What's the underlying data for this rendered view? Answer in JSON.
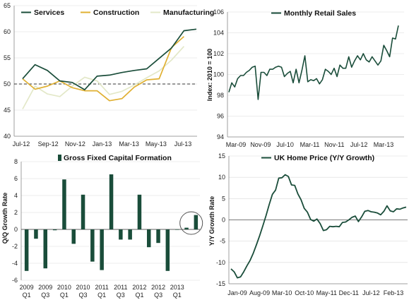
{
  "colors": {
    "dark_green": "#1a4d3a",
    "gold": "#e0b032",
    "pale_green": "#e3e8c8",
    "grid": "#d9d9d9",
    "axis": "#888888"
  },
  "chart_data": [
    {
      "id": "pmi",
      "type": "line",
      "title": "",
      "xlabel": "",
      "ylabel": "",
      "ylim": [
        40,
        65
      ],
      "yticks": [
        40,
        45,
        50,
        55,
        60,
        65
      ],
      "xtick_labels": [
        "Jul-12",
        "Sep-12",
        "Nov-12",
        "Jan-13",
        "Mar-13",
        "May-13",
        "Jul-13"
      ],
      "reference_line": 50,
      "legend_position": "top",
      "grid": "horizontal",
      "series": [
        {
          "name": "Services",
          "color": "#1a4d3a",
          "values": [
            51.0,
            53.7,
            52.6,
            50.6,
            50.3,
            48.9,
            51.5,
            51.7,
            52.2,
            52.6,
            52.9,
            54.9,
            56.9,
            60.2,
            60.5
          ]
        },
        {
          "name": "Construction",
          "color": "#e0b032",
          "values": [
            51.0,
            49.0,
            49.6,
            50.6,
            49.3,
            48.7,
            48.7,
            46.8,
            47.2,
            49.4,
            50.8,
            51.0,
            57.0,
            59.1,
            null
          ]
        },
        {
          "name": "Manufacturing",
          "color": "#e3e8c8",
          "values": [
            45.2,
            49.6,
            48.1,
            47.6,
            49.6,
            51.3,
            50.6,
            48.0,
            48.6,
            49.8,
            51.2,
            52.5,
            54.6,
            57.2,
            null
          ]
        }
      ]
    },
    {
      "id": "retail",
      "type": "line",
      "title": "Monthly Retail Sales",
      "xlabel": "",
      "ylabel": "Index: 2010 = 100",
      "ylim": [
        94,
        106
      ],
      "yticks": [
        94,
        96,
        98,
        100,
        102,
        104,
        106
      ],
      "xtick_labels": [
        "Mar-09",
        "Nov-09",
        "Jul-10",
        "Mar-11",
        "Nov-11",
        "Jul-12",
        "Mar-13"
      ],
      "legend_position": "top",
      "grid": "horizontal",
      "series": [
        {
          "name": "Monthly Retail Sales",
          "color": "#1a4d3a",
          "values": [
            98.3,
            99.2,
            98.8,
            99.6,
            99.9,
            99.9,
            100.2,
            100.4,
            100.7,
            100.8,
            97.6,
            100.2,
            100.2,
            99.9,
            100.5,
            100.5,
            100.7,
            100.8,
            100.7,
            99.8,
            100.1,
            100.3,
            99.2,
            100.5,
            99.2,
            100.4,
            101.8,
            99.3,
            99.5,
            99.4,
            99.6,
            99.1,
            99.5,
            100.5,
            100.3,
            100.0,
            100.6,
            99.8,
            100.9,
            100.6,
            100.6,
            101.7,
            100.7,
            101.3,
            101.8,
            101.4,
            102.0,
            101.4,
            101.2,
            101.7,
            101.3,
            100.9,
            101.3,
            102.8,
            102.3,
            101.7,
            103.5,
            103.4,
            104.7
          ]
        }
      ]
    },
    {
      "id": "gfcf",
      "type": "bar",
      "title": "Gross Fixed Capital Formation",
      "xlabel": "",
      "ylabel": "Q/Q Growth Rate",
      "ylim": [
        -6,
        8
      ],
      "yticks": [
        -6,
        -4,
        -2,
        0,
        2,
        4,
        6,
        8
      ],
      "categories": [
        "2009 Q1",
        "2009 Q2",
        "2009 Q3",
        "2009 Q4",
        "2010 Q1",
        "2010 Q2",
        "2010 Q3",
        "2010 Q4",
        "2011 Q1",
        "2011 Q2",
        "2011 Q3",
        "2011 Q4",
        "2012 Q1",
        "2012 Q2",
        "2012 Q3",
        "2012 Q4",
        "2013 Q1",
        "2013 Q2",
        "2013 Q3"
      ],
      "values": [
        -4.9,
        -1.1,
        -4.6,
        -0.1,
        5.9,
        -1.7,
        4.1,
        -3.8,
        -4.8,
        6.5,
        -1.2,
        -1.2,
        4.1,
        -2.1,
        -1.6,
        -4.9,
        0.0,
        0.2,
        1.7
      ],
      "tick_labels": [
        {
          "year": "2009",
          "quarter": "Q1"
        },
        {
          "year": "2009",
          "quarter": "Q3"
        },
        {
          "year": "2010",
          "quarter": "Q1"
        },
        {
          "year": "2010",
          "quarter": "Q3"
        },
        {
          "year": "2011",
          "quarter": "Q1"
        },
        {
          "year": "2011",
          "quarter": "Q3"
        },
        {
          "year": "2012",
          "quarter": "Q1"
        },
        {
          "year": "2012",
          "quarter": "Q3"
        },
        {
          "year": "2013",
          "quarter": "Q1"
        }
      ],
      "highlight": "last two bars circled",
      "legend_position": "top",
      "grid": "horizontal",
      "series": [
        {
          "name": "Gross Fixed Capital Formation",
          "color": "#1a4d3a"
        }
      ]
    },
    {
      "id": "homeprice",
      "type": "line",
      "title": "UK Home Price (Y/Y Growth)",
      "xlabel": "",
      "ylabel": "Y/Y Growth Rate",
      "ylim": [
        -15,
        15
      ],
      "yticks": [
        -15,
        -10,
        -5,
        0,
        5,
        10,
        15
      ],
      "xtick_labels": [
        "Jan-09",
        "Aug-09",
        "Mar-10",
        "Oct-10",
        "May-11",
        "Dec-11",
        "Jul-12",
        "Feb-13"
      ],
      "legend_position": "top",
      "grid": "horizontal",
      "series": [
        {
          "name": "UK Home Price (Y/Y Growth)",
          "color": "#1a4d3a",
          "values": [
            -11.5,
            -12.2,
            -13.6,
            -13.4,
            -12.2,
            -10.8,
            -9.5,
            -7.8,
            -5.8,
            -3.7,
            -1.4,
            1.0,
            3.6,
            6.0,
            7.0,
            9.8,
            9.9,
            10.6,
            10.2,
            8.2,
            8.1,
            6.1,
            4.7,
            2.7,
            1.8,
            0.1,
            -0.3,
            0.2,
            -0.9,
            -2.5,
            -2.3,
            -1.5,
            -1.6,
            -1.5,
            -1.6,
            -0.6,
            -0.5,
            0.0,
            0.6,
            0.9,
            -0.4,
            0.7,
            2.0,
            2.2,
            1.9,
            1.8,
            1.6,
            1.2,
            2.0,
            3.3,
            2.1,
            1.9,
            2.6,
            2.5,
            2.8,
            3.0
          ]
        }
      ]
    }
  ]
}
